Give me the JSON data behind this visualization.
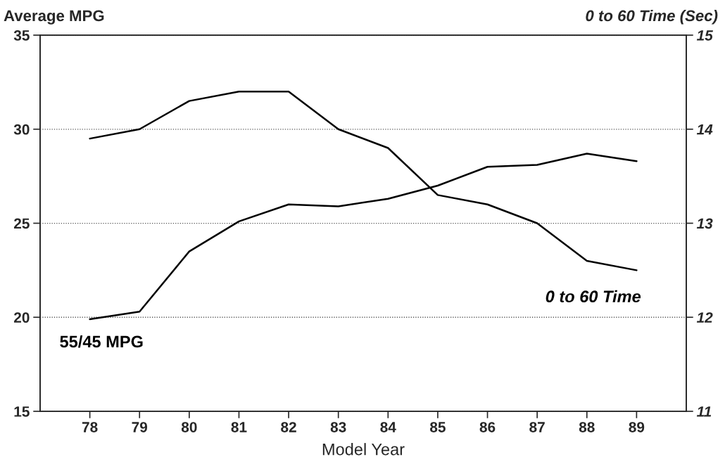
{
  "chart_data": {
    "type": "line",
    "xlabel": "Model Year",
    "ylabel": "Average MPG",
    "y2label": "0 to 60 Time (Sec)",
    "x": [
      78,
      79,
      80,
      81,
      82,
      83,
      84,
      85,
      86,
      87,
      88,
      89
    ],
    "xlim": [
      77,
      90
    ],
    "xticks": [
      78,
      79,
      80,
      81,
      82,
      83,
      84,
      85,
      86,
      87,
      88,
      89
    ],
    "ylim": [
      15,
      35
    ],
    "yticks": [
      15,
      20,
      25,
      30,
      35
    ],
    "y2lim": [
      11,
      15
    ],
    "y2ticks": [
      11,
      12,
      13,
      14,
      15
    ],
    "grid": "y",
    "legend": false,
    "marker": "none",
    "line_style": "solid",
    "series": [
      {
        "name": "55/45 MPG",
        "color": "#000000",
        "values": [
          19.9,
          20.3,
          23.5,
          25.1,
          26.0,
          25.9,
          26.3,
          27.0,
          28.0,
          28.1,
          28.7,
          28.3
        ]
      },
      {
        "name": "0 to 60 Time",
        "color": "#000000",
        "axis": "y2",
        "values": [
          13.9,
          14.0,
          14.3,
          14.4,
          14.4,
          14.0,
          13.8,
          13.3,
          13.2,
          13.0,
          12.6,
          12.5
        ]
      }
    ]
  }
}
